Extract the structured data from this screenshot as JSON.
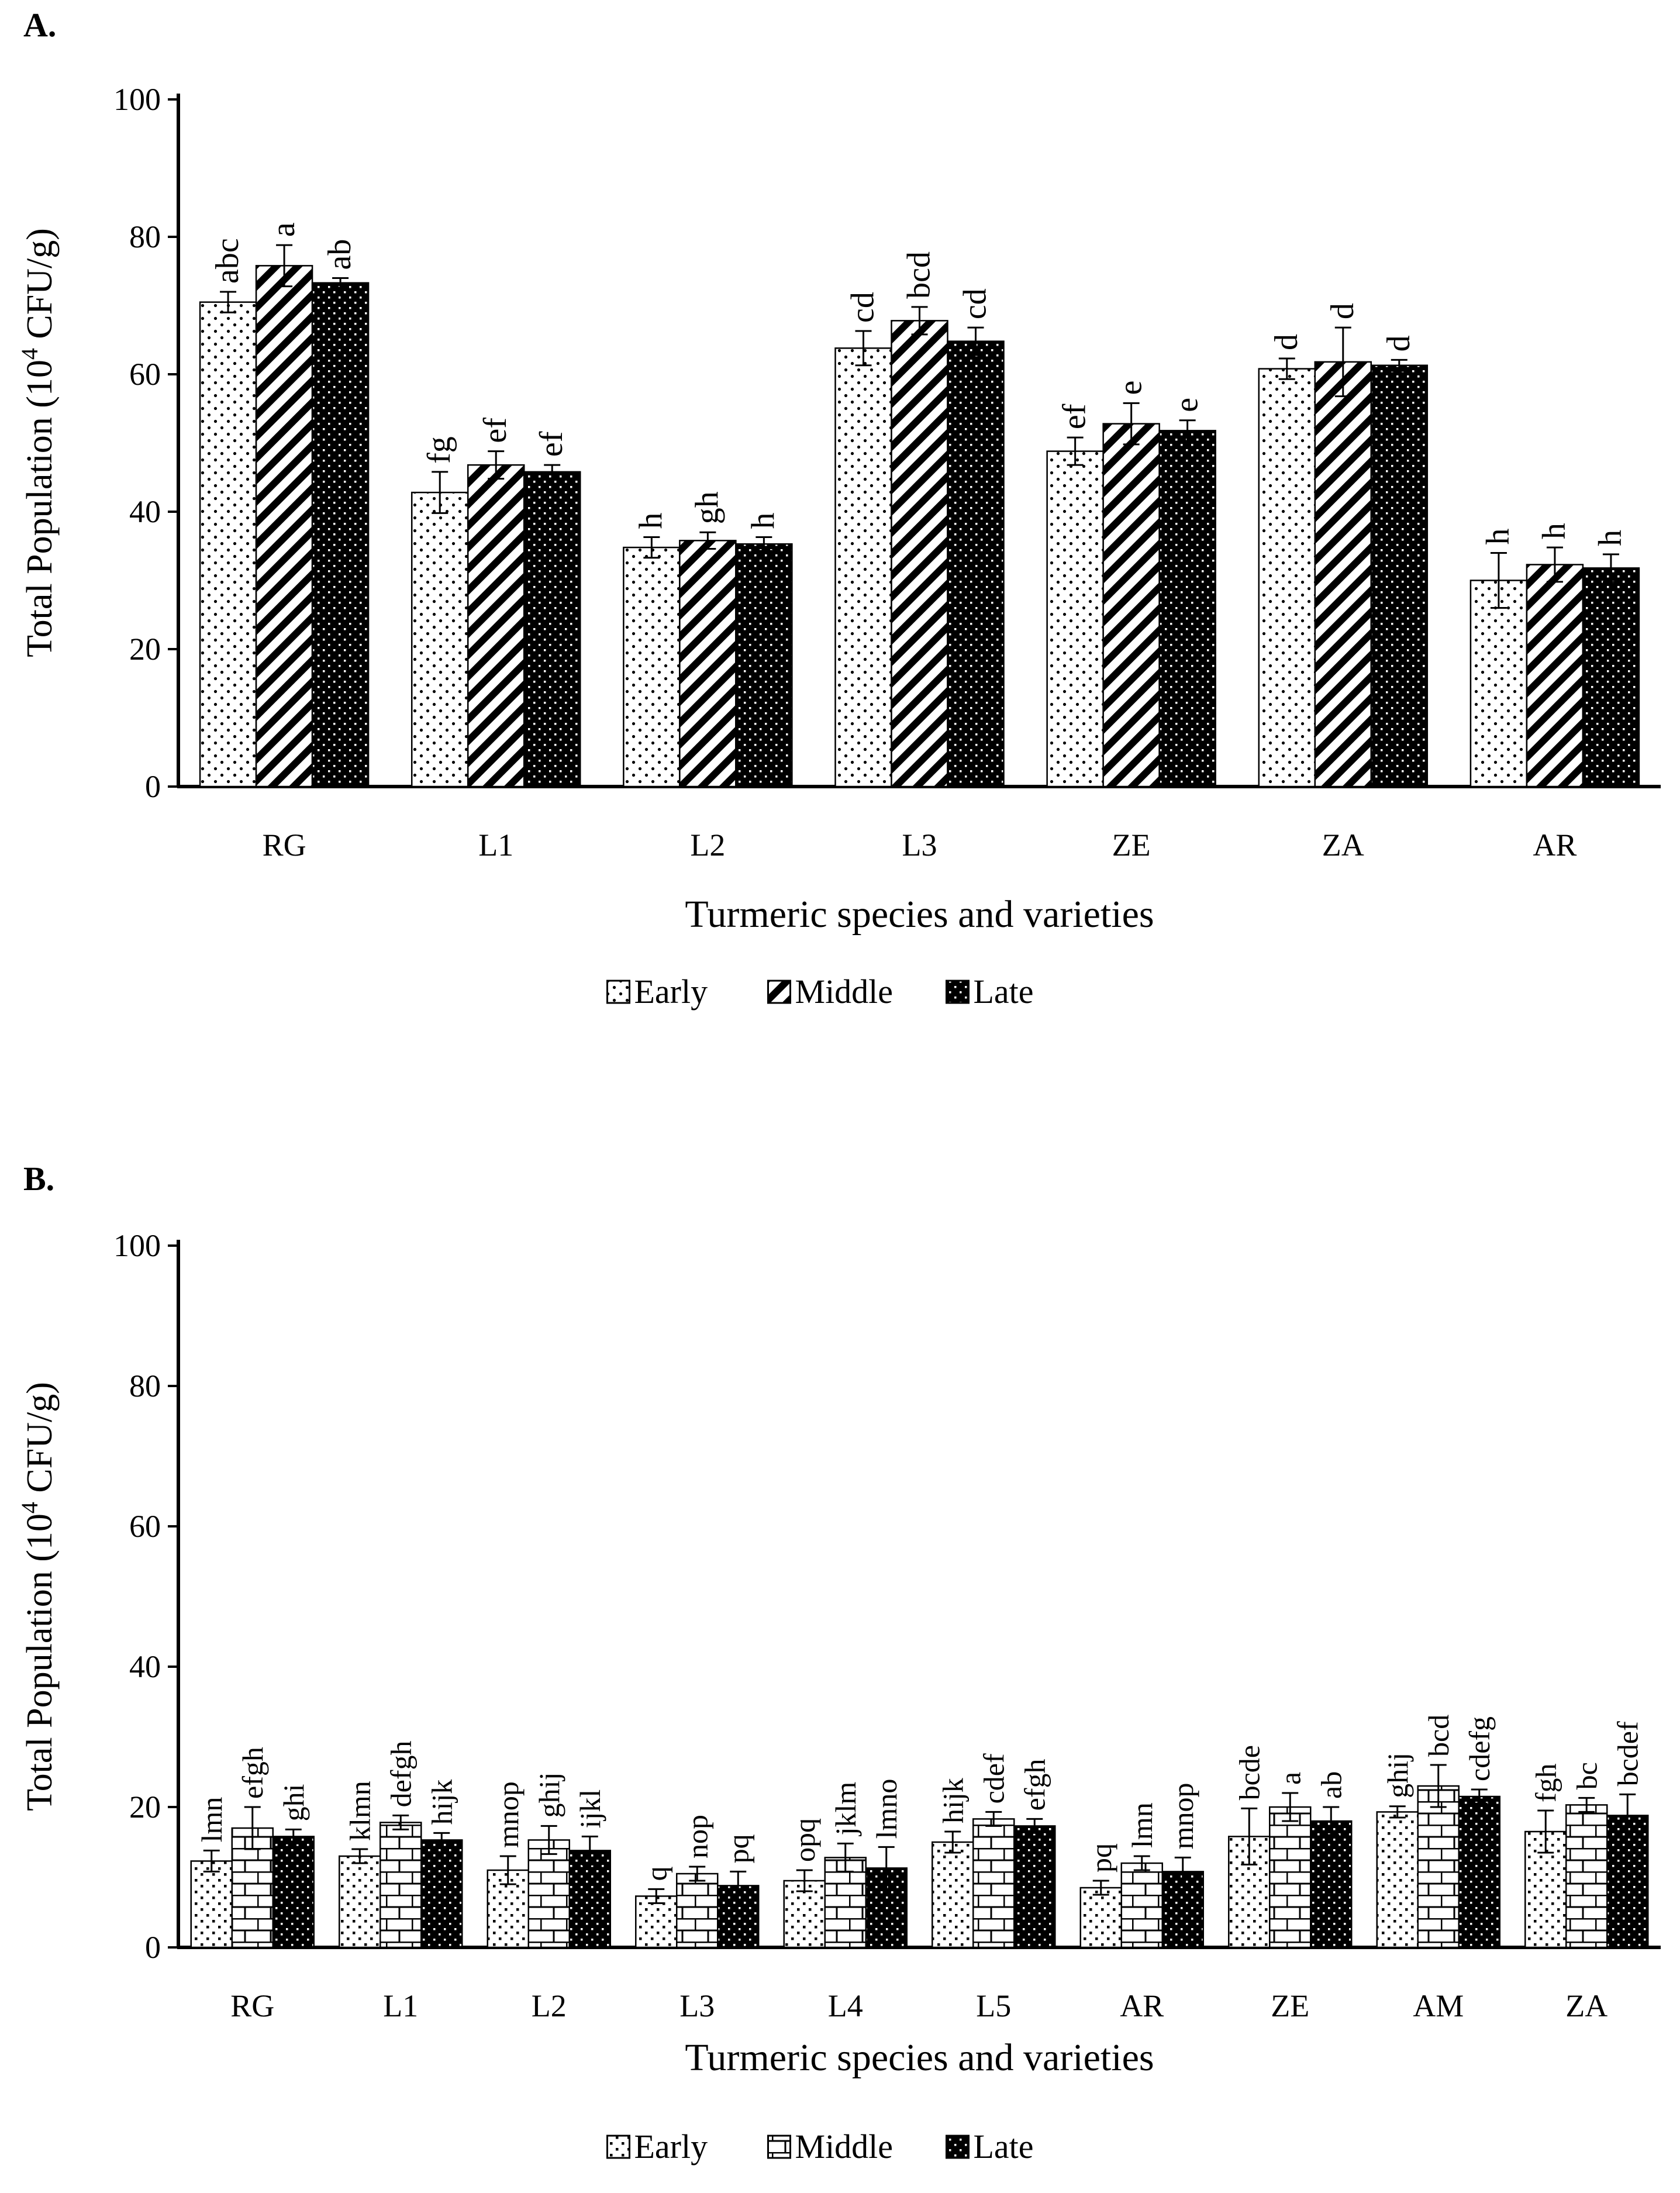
{
  "figure": {
    "background": "#ffffff",
    "bar_stroke": "#000000"
  },
  "chart_data": [
    {
      "panel_label": "A.",
      "type": "bar",
      "categories": [
        "RG",
        "L1",
        "L2",
        "L3",
        "ZE",
        "ZA",
        "AR"
      ],
      "series": [
        {
          "name": "Early",
          "pattern": "dots",
          "values": [
            70.5,
            42.8,
            34.8,
            63.8,
            48.8,
            60.8,
            30.0
          ],
          "errors": [
            1.5,
            3.0,
            1.5,
            2.5,
            2.0,
            1.5,
            4.0
          ],
          "letters": [
            "abc",
            "fg",
            "h",
            "cd",
            "ef",
            "d",
            "h"
          ]
        },
        {
          "name": "Middle",
          "pattern": "diagonal-stripes",
          "values": [
            75.8,
            46.8,
            35.8,
            67.8,
            52.8,
            61.8,
            32.3
          ],
          "errors": [
            3.0,
            2.0,
            1.2,
            2.0,
            3.0,
            5.0,
            2.5
          ],
          "letters": [
            "a",
            "ef",
            "gh",
            "bcd",
            "e",
            "d",
            "h"
          ]
        },
        {
          "name": "Late",
          "pattern": "dark-checker",
          "values": [
            73.3,
            45.8,
            35.3,
            64.8,
            51.8,
            61.3,
            31.8
          ],
          "errors": [
            0.7,
            1.0,
            1.0,
            2.0,
            1.5,
            0.8,
            2.0
          ],
          "letters": [
            "ab",
            "ef",
            "h",
            "cd",
            "e",
            "d",
            "h"
          ]
        }
      ],
      "title": "",
      "xlabel": "Turmeric species and varieties",
      "ylabel_pre": "Total Population (10",
      "ylabel_sup": "4",
      "ylabel_post": "  CFU/g)",
      "ylim": [
        0,
        100
      ],
      "yticks": [
        0,
        20,
        40,
        60,
        80,
        100
      ],
      "grid": false,
      "legend_position": "bottom-center"
    },
    {
      "panel_label": "B.",
      "type": "bar",
      "categories": [
        "RG",
        "L1",
        "L2",
        "L3",
        "L4",
        "L5",
        "AR",
        "ZE",
        "AM",
        "ZA"
      ],
      "series": [
        {
          "name": "Early",
          "pattern": "sparse-dots",
          "values": [
            12.3,
            13.0,
            11.0,
            7.3,
            9.5,
            15.0,
            8.5,
            15.8,
            19.3,
            16.5
          ],
          "errors": [
            1.5,
            1.0,
            2.0,
            1.0,
            1.5,
            1.5,
            1.0,
            4.0,
            0.8,
            3.0
          ],
          "letters": [
            "lmn",
            "klmn",
            "mnop",
            "q",
            "opq",
            "hijk",
            "pq",
            "bcde",
            "ghij",
            "fgh"
          ]
        },
        {
          "name": "Middle",
          "pattern": "bricks",
          "values": [
            17.0,
            17.8,
            15.3,
            10.5,
            12.8,
            18.3,
            12.0,
            20.0,
            23.0,
            20.3
          ],
          "errors": [
            3.0,
            1.0,
            2.0,
            1.0,
            2.0,
            1.0,
            1.0,
            2.0,
            3.0,
            1.0
          ],
          "letters": [
            "efgh",
            "defgh",
            "ghij",
            "nop",
            "jklm",
            "cdef",
            "lmn",
            "a",
            "bcd",
            "bc"
          ]
        },
        {
          "name": "Late",
          "pattern": "dark-checker",
          "values": [
            15.8,
            15.3,
            13.8,
            8.8,
            11.3,
            17.3,
            10.8,
            18.0,
            21.5,
            18.8
          ],
          "errors": [
            1.0,
            1.0,
            2.0,
            2.0,
            3.0,
            1.0,
            2.0,
            2.0,
            1.0,
            3.0
          ],
          "letters": [
            "ghi",
            "hijk",
            "ijkl",
            "pq",
            "lmno",
            "efgh",
            "mnop",
            "ab",
            "cdefg",
            "bcdef"
          ]
        }
      ],
      "title": "",
      "xlabel": "Turmeric species and varieties",
      "ylabel_pre": "Total Population (10",
      "ylabel_sup": "4",
      "ylabel_post": " CFU/g)",
      "ylim": [
        0,
        100
      ],
      "yticks": [
        0,
        20,
        40,
        60,
        80,
        100
      ],
      "grid": false,
      "legend_position": "bottom-center"
    }
  ]
}
